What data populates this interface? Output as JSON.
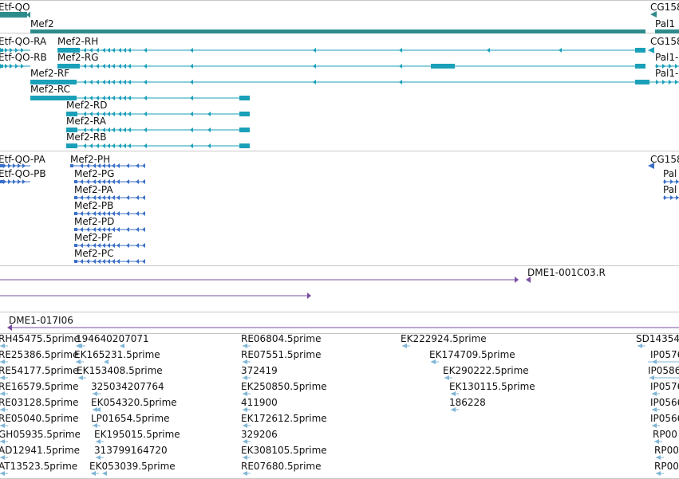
{
  "tracks": {
    "gene": {
      "labels": [
        "Etf-QO",
        "Mef2",
        "CG158",
        "Pal1"
      ],
      "color": "#2e8b8b"
    },
    "transcripts1": {
      "labels": [
        "Etf-QO-RA",
        "Mef2-RH",
        "CG158",
        "Etf-QO-RB",
        "Mef2-RG",
        "Pal1-",
        "Mef2-RF",
        "Pal1-",
        "Mef2-RC",
        "Mef2-RD",
        "Mef2-RA",
        "Mef2-RB"
      ],
      "color": "#1aa0b8"
    },
    "transcripts2": {
      "labels": [
        "Etf-QO-PA",
        "Mef2-PH",
        "CG158",
        "Etf-QO-PB",
        "Mef2-PG",
        "Pal",
        "Mef2-PA",
        "Pal",
        "Mef2-PB",
        "Mef2-PD",
        "Mef2-PF",
        "Mef2-PC"
      ],
      "color": "#3a6fc8"
    },
    "clones": {
      "labels": [
        "DME1-001C03.R",
        "DME1-017I06"
      ],
      "color": "#7b4fa0"
    },
    "ests": {
      "labels": [
        "RH45475.5prime",
        "194640207071",
        "RE06804.5prime",
        "EK222924.5prime",
        "SD14354",
        "RE25386.5prime",
        "EK165231.5prime",
        "RE07551.5prime",
        "EK174709.5prime",
        "IP0576",
        "RE54177.5prime",
        "EK153408.5prime",
        "372419",
        "EK290222.5prime",
        "IP0586",
        "RE16579.5prime",
        "325034207764",
        "EK250850.5prime",
        "EK130115.5prime",
        "IP0576",
        "RE03128.5prime",
        "EK054320.5prime",
        "411900",
        "186228",
        "IP0566",
        "RE05040.5prime",
        "LP01654.5prime",
        "EK172612.5prime",
        "IP0566",
        "GH05935.5prime",
        "EK195015.5prime",
        "329206",
        "RP00",
        "AD12941.5prime",
        "313799164720",
        "EK308105.5prime",
        "RP00",
        "AT13523.5prime",
        "EK053039.5prime",
        "RE07680.5prime",
        "RP00"
      ],
      "color": "#7fb6d8"
    }
  }
}
